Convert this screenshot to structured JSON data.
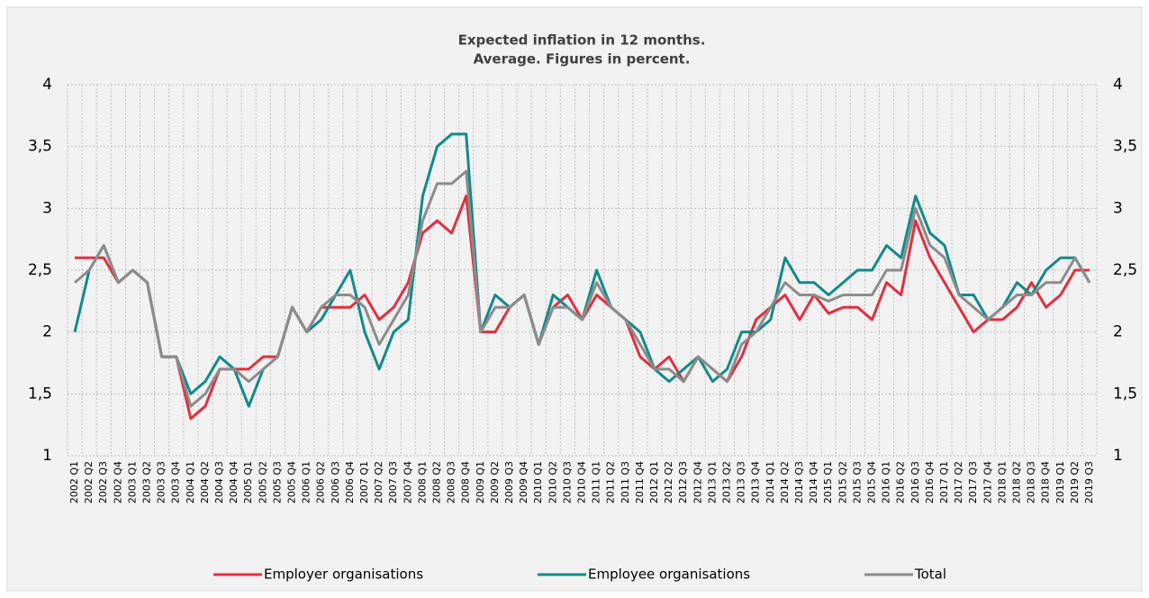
{
  "chart_data": {
    "type": "line",
    "title": "Expected inflation in 12 months.",
    "subtitle": "Average. Figures in percent.",
    "categories": [
      "2002 Q1",
      "2002 Q2",
      "2002 Q3",
      "2002 Q4",
      "2003 Q1",
      "2003 Q2",
      "2003 Q3",
      "2003 Q4",
      "2004 Q1",
      "2004 Q2",
      "2004 Q3",
      "2004 Q4",
      "2005 Q1",
      "2005 Q2",
      "2005 Q3",
      "2005 Q4",
      "2006 Q1",
      "2006 Q2",
      "2006 Q3",
      "2006 Q4",
      "2007 Q1",
      "2007 Q2",
      "2007 Q3",
      "2007 Q4",
      "2008 Q1",
      "2008 Q2",
      "2008 Q3",
      "2008 Q4",
      "2009 Q1",
      "2009 Q2",
      "2009 Q3",
      "2009 Q4",
      "2010 Q1",
      "2010 Q2",
      "2010 Q3",
      "2010 Q4",
      "2011 Q1",
      "2011 Q2",
      "2011 Q3",
      "2011 Q4",
      "2012 Q1",
      "2012 Q2",
      "2012 Q3",
      "2012 Q4",
      "2013 Q1",
      "2013 Q2",
      "2013 Q3",
      "2013 Q4",
      "2014 Q1",
      "2014 Q2",
      "2014 Q3",
      "2014 Q4",
      "2015 Q1",
      "2015 Q2",
      "2015 Q3",
      "2015 Q4",
      "2016 Q1",
      "2016 Q2",
      "2016 Q3",
      "2016 Q4",
      "2017 Q1",
      "2017 Q2",
      "2017 Q3",
      "2017 Q4",
      "2018 Q1",
      "2018 Q2",
      "2018 Q3",
      "2018 Q4",
      "2019 Q1",
      "2019 Q2",
      "2019 Q3"
    ],
    "series": [
      {
        "name": "Employer organisations",
        "color": "#e03040",
        "values": [
          2.6,
          2.6,
          2.6,
          2.4,
          2.5,
          2.4,
          1.8,
          1.8,
          1.3,
          1.4,
          1.7,
          1.7,
          1.7,
          1.8,
          1.8,
          2.2,
          2.0,
          2.2,
          2.2,
          2.2,
          2.3,
          2.1,
          2.2,
          2.4,
          2.8,
          2.9,
          2.8,
          3.1,
          2.0,
          2.0,
          2.2,
          2.3,
          1.9,
          2.2,
          2.3,
          2.1,
          2.3,
          2.2,
          2.1,
          1.8,
          1.7,
          1.8,
          1.6,
          1.8,
          1.7,
          1.6,
          1.8,
          2.1,
          2.2,
          2.3,
          2.1,
          2.3,
          2.15,
          2.2,
          2.2,
          2.1,
          2.4,
          2.3,
          2.9,
          2.6,
          2.4,
          2.2,
          2.0,
          2.1,
          2.1,
          2.2,
          2.4,
          2.2,
          2.3,
          2.5,
          2.5
        ]
      },
      {
        "name": "Employee organisations",
        "color": "#138a8a",
        "values": [
          2.0,
          2.5,
          2.7,
          2.4,
          2.5,
          2.4,
          1.8,
          1.8,
          1.5,
          1.6,
          1.8,
          1.7,
          1.4,
          1.7,
          1.8,
          2.2,
          2.0,
          2.1,
          2.3,
          2.5,
          2.0,
          1.7,
          2.0,
          2.1,
          3.1,
          3.5,
          3.6,
          3.6,
          2.0,
          2.3,
          2.2,
          2.3,
          1.9,
          2.3,
          2.2,
          2.1,
          2.5,
          2.2,
          2.1,
          2.0,
          1.7,
          1.6,
          1.7,
          1.8,
          1.6,
          1.7,
          2.0,
          2.0,
          2.1,
          2.6,
          2.4,
          2.4,
          2.3,
          2.4,
          2.5,
          2.5,
          2.7,
          2.6,
          3.1,
          2.8,
          2.7,
          2.3,
          2.3,
          2.1,
          2.2,
          2.4,
          2.3,
          2.5,
          2.6,
          2.6,
          2.4
        ]
      },
      {
        "name": "Total",
        "color": "#8c8c8c",
        "values": [
          2.4,
          2.5,
          2.7,
          2.4,
          2.5,
          2.4,
          1.8,
          1.8,
          1.4,
          1.5,
          1.7,
          1.7,
          1.6,
          1.7,
          1.8,
          2.2,
          2.0,
          2.2,
          2.3,
          2.3,
          2.2,
          1.9,
          2.1,
          2.3,
          2.9,
          3.2,
          3.2,
          3.3,
          2.0,
          2.2,
          2.2,
          2.3,
          1.9,
          2.2,
          2.2,
          2.1,
          2.4,
          2.2,
          2.1,
          1.9,
          1.7,
          1.7,
          1.6,
          1.8,
          1.7,
          1.6,
          1.9,
          2.0,
          2.2,
          2.4,
          2.3,
          2.3,
          2.25,
          2.3,
          2.3,
          2.3,
          2.5,
          2.5,
          3.0,
          2.7,
          2.6,
          2.3,
          2.2,
          2.1,
          2.2,
          2.3,
          2.3,
          2.4,
          2.4,
          2.6,
          2.4
        ]
      }
    ],
    "ylim": [
      1,
      4
    ],
    "yticks": [
      1,
      {
        "value": 1.5,
        "label": "1,5"
      },
      2,
      {
        "value": 2.5,
        "label": "2,5"
      },
      3,
      {
        "value": 3.5,
        "label": "3,5"
      },
      4
    ],
    "y2lim": [
      1,
      4
    ],
    "y2ticks": [
      1,
      {
        "value": 1.5,
        "label": "1,5"
      },
      2,
      {
        "value": 2.5,
        "label": "2,5"
      },
      3,
      {
        "value": 3.5,
        "label": "3,5"
      },
      4
    ],
    "grid": true,
    "legend": "bottom"
  }
}
